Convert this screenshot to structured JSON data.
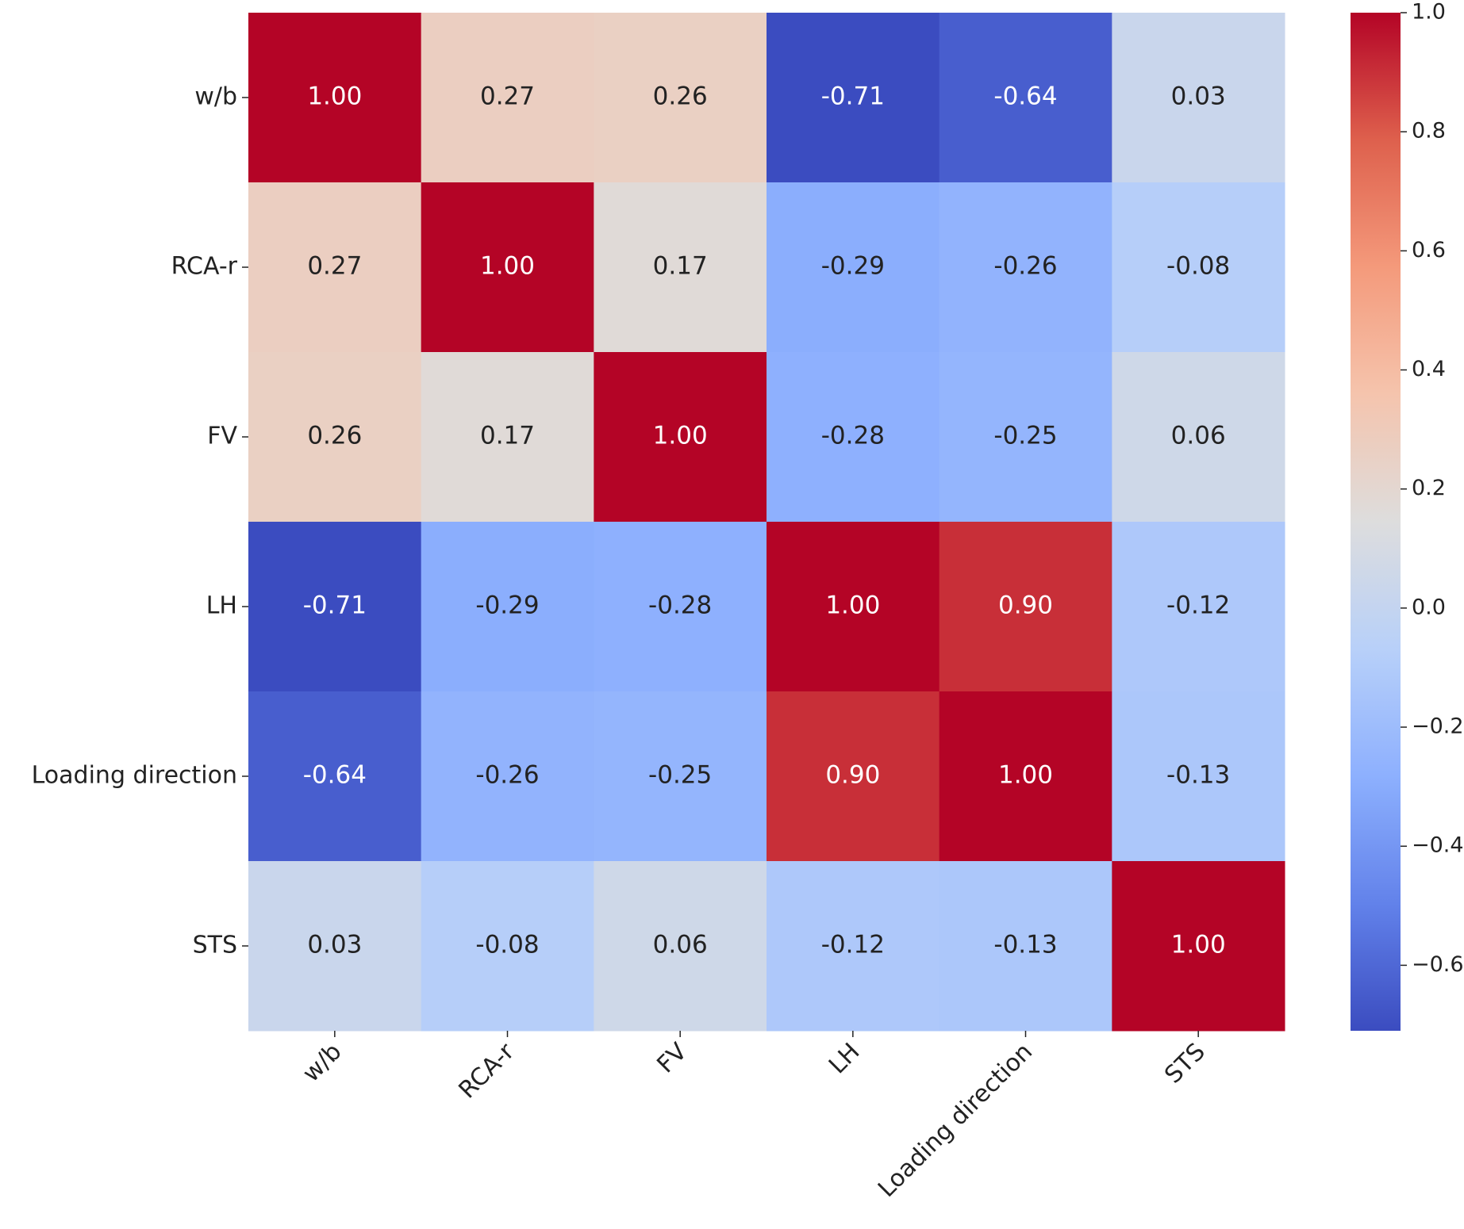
{
  "chart_data": {
    "type": "heatmap",
    "x_categories": [
      "w/b",
      "RCA-r",
      "FV",
      "LH",
      "Loading direction",
      "STS"
    ],
    "y_categories": [
      "w/b",
      "RCA-r",
      "FV",
      "LH",
      "Loading direction",
      "STS"
    ],
    "values": [
      [
        1.0,
        0.27,
        0.26,
        -0.71,
        -0.64,
        0.03
      ],
      [
        0.27,
        1.0,
        0.17,
        -0.29,
        -0.26,
        -0.08
      ],
      [
        0.26,
        0.17,
        1.0,
        -0.28,
        -0.25,
        0.06
      ],
      [
        -0.71,
        -0.29,
        -0.28,
        1.0,
        0.9,
        -0.12
      ],
      [
        -0.64,
        -0.26,
        -0.25,
        0.9,
        1.0,
        -0.13
      ],
      [
        0.03,
        -0.08,
        0.06,
        -0.12,
        -0.13,
        1.0
      ]
    ],
    "value_labels": [
      [
        "1.00",
        "0.27",
        "0.26",
        "-0.71",
        "-0.64",
        "0.03"
      ],
      [
        "0.27",
        "1.00",
        "0.17",
        "-0.29",
        "-0.26",
        "-0.08"
      ],
      [
        "0.26",
        "0.17",
        "1.00",
        "-0.28",
        "-0.25",
        "0.06"
      ],
      [
        "-0.71",
        "-0.29",
        "-0.28",
        "1.00",
        "0.90",
        "-0.12"
      ],
      [
        "-0.64",
        "-0.26",
        "-0.25",
        "0.90",
        "1.00",
        "-0.13"
      ],
      [
        "0.03",
        "-0.08",
        "0.06",
        "-0.12",
        "-0.13",
        "1.00"
      ]
    ],
    "colormap": "coolwarm",
    "clim": [
      -0.71,
      1.0
    ],
    "cticks": [
      {
        "value": 1.0,
        "label": "1.0"
      },
      0.8,
      0.6,
      0.4,
      0.2,
      {
        "value": 0.0,
        "label": "0.0"
      },
      {
        "value": -0.2,
        "label": "−0.2"
      },
      {
        "value": -0.4,
        "label": "−0.4"
      },
      {
        "value": -0.6,
        "label": "−0.6"
      }
    ]
  }
}
